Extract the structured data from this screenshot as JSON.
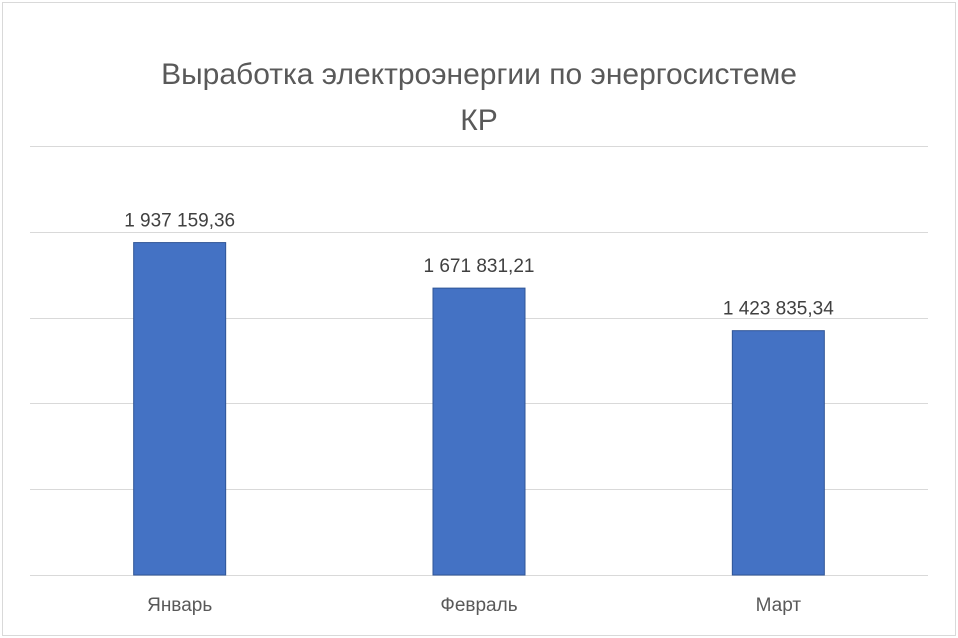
{
  "chart_data": {
    "type": "bar",
    "title_lines": [
      "Выработка электроэнергии по энергосистеме",
      "КР"
    ],
    "categories": [
      "Январь",
      "Февраль",
      "Март"
    ],
    "values": [
      1937159.36,
      1671831.21,
      1423835.34
    ],
    "data_labels": [
      "1 937 159,36",
      "1 671 831,21",
      "1 423 835,34"
    ],
    "ylim": [
      0,
      2500000
    ],
    "y_gridline_step": 500000,
    "grid": true,
    "legend": "none",
    "bar_color": "#4472c4"
  }
}
